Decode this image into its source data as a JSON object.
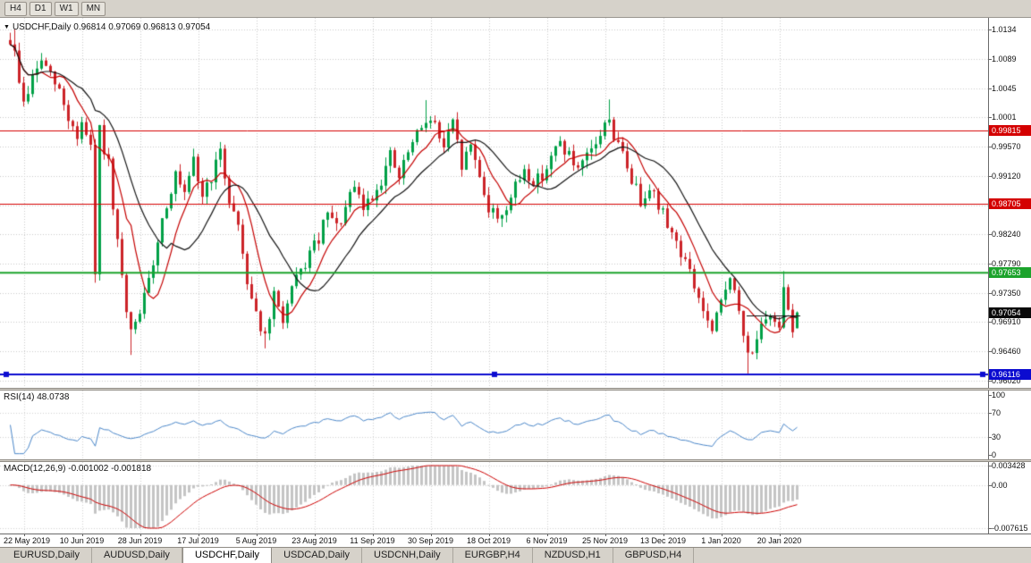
{
  "toolbar": {
    "timeframes": [
      "H4",
      "D1",
      "W1",
      "MN"
    ]
  },
  "chart": {
    "title": "USDCHF,Daily  0.96814 0.97069 0.96813 0.97054",
    "y_ticks": [
      {
        "v": 1.0134,
        "t": "1.0134"
      },
      {
        "v": 1.0089,
        "t": "1.0089"
      },
      {
        "v": 1.0045,
        "t": "1.0045"
      },
      {
        "v": 1.0001,
        "t": "1.0001"
      },
      {
        "v": 0.9957,
        "t": "0.99570"
      },
      {
        "v": 0.9912,
        "t": "0.99120"
      },
      {
        "v": 0.9867,
        "t": "0.98670"
      },
      {
        "v": 0.9824,
        "t": "0.98240"
      },
      {
        "v": 0.9779,
        "t": "0.97790"
      },
      {
        "v": 0.9735,
        "t": "0.97350"
      },
      {
        "v": 0.9691,
        "t": "0.96910"
      },
      {
        "v": 0.9646,
        "t": "0.96460"
      },
      {
        "v": 0.9602,
        "t": "0.96020"
      }
    ],
    "levels": [
      {
        "v": 0.99815,
        "t": "0.99815",
        "color": "#d40000",
        "width": 1,
        "handles": false
      },
      {
        "v": 0.98705,
        "t": "0.98705",
        "color": "#d40000",
        "width": 1,
        "handles": false
      },
      {
        "v": 0.97653,
        "t": "0.97653",
        "color": "#1ca32c",
        "width": 2,
        "handles": false
      },
      {
        "v": 0.96116,
        "t": "0.96116",
        "color": "#0b0bd0",
        "width": 2,
        "handles": true
      }
    ],
    "bid": {
      "v": 0.97054,
      "t": "0.97054",
      "color": "#0a0a0a"
    },
    "segment": {
      "v": 0.9701,
      "i1": 165,
      "i2": 177,
      "color": "#111111"
    }
  },
  "rsi": {
    "title": "RSI(14) 48.0738",
    "period": 14,
    "last": 48.0738,
    "levels": [
      {
        "v": 100,
        "t": "100"
      },
      {
        "v": 70,
        "t": "70"
      },
      {
        "v": 30,
        "t": "30"
      },
      {
        "v": 0,
        "t": "0"
      }
    ],
    "color": "#4a86c8"
  },
  "macd": {
    "title": "MACD(12,26,9) -0.001002 -0.001818",
    "fast": 12,
    "slow": 26,
    "signal": 9,
    "main_last": -0.001002,
    "signal_last": -0.001818,
    "axis": [
      {
        "v": 0.003428,
        "t": "0.003428"
      },
      {
        "v": 0,
        "t": "0.00"
      },
      {
        "v": -0.007615,
        "t": "-0.007615"
      }
    ],
    "hist_color": "#c4c4c4",
    "signal_color": "#cc0000"
  },
  "x_axis": {
    "labels": [
      "22 May 2019",
      "10 Jun 2019",
      "28 Jun 2019",
      "17 Jul 2019",
      "5 Aug 2019",
      "23 Aug 2019",
      "11 Sep 2019",
      "30 Sep 2019",
      "18 Oct 2019",
      "6 Nov 2019",
      "25 Nov 2019",
      "13 Dec 2019",
      "1 Jan 2020",
      "20 Jan 2020"
    ],
    "first_index": 3,
    "step": 13
  },
  "tabs": [
    {
      "label": "EURUSD,Daily",
      "active": false
    },
    {
      "label": "AUDUSD,Daily",
      "active": false
    },
    {
      "label": "USDCHF,Daily",
      "active": true
    },
    {
      "label": "USDCAD,Daily",
      "active": false
    },
    {
      "label": "USDCNH,Daily",
      "active": false
    },
    {
      "label": "EURGBP,H4",
      "active": false
    },
    {
      "label": "NZDUSD,H1",
      "active": false
    },
    {
      "label": "GBPUSD,H4",
      "active": false
    }
  ],
  "chart_data": {
    "type": "candlestick",
    "symbol": "USDCHF",
    "timeframe": "Daily",
    "visible_price_range": {
      "min": 0.9602,
      "max": 1.0134
    },
    "count": 177,
    "seed": 9,
    "noise": 0.0011,
    "wick": 0.0013,
    "close_waypoints": [
      [
        0,
        1.0118
      ],
      [
        1,
        1.0095
      ],
      [
        3,
        1.0022
      ],
      [
        5,
        1.006
      ],
      [
        7,
        1.0088
      ],
      [
        9,
        1.0062
      ],
      [
        11,
        1.004
      ],
      [
        13,
        1.0
      ],
      [
        15,
        0.9972
      ],
      [
        16,
        0.9992
      ],
      [
        18,
        0.995
      ],
      [
        19,
        0.9762
      ],
      [
        20,
        0.998
      ],
      [
        22,
        0.9928
      ],
      [
        23,
        0.9855
      ],
      [
        25,
        0.9758
      ],
      [
        26,
        0.97
      ],
      [
        27,
        0.9672
      ],
      [
        29,
        0.9708
      ],
      [
        31,
        0.9748
      ],
      [
        33,
        0.9818
      ],
      [
        35,
        0.9872
      ],
      [
        37,
        0.9912
      ],
      [
        39,
        0.9878
      ],
      [
        41,
        0.9932
      ],
      [
        43,
        0.9882
      ],
      [
        45,
        0.9912
      ],
      [
        47,
        0.9945
      ],
      [
        49,
        0.9878
      ],
      [
        51,
        0.9838
      ],
      [
        53,
        0.9755
      ],
      [
        55,
        0.9706
      ],
      [
        57,
        0.9664
      ],
      [
        59,
        0.9728
      ],
      [
        61,
        0.9696
      ],
      [
        63,
        0.9738
      ],
      [
        65,
        0.9766
      ],
      [
        67,
        0.9794
      ],
      [
        69,
        0.9816
      ],
      [
        71,
        0.9854
      ],
      [
        73,
        0.9832
      ],
      [
        75,
        0.9862
      ],
      [
        77,
        0.9892
      ],
      [
        79,
        0.9864
      ],
      [
        81,
        0.9882
      ],
      [
        83,
        0.9908
      ],
      [
        85,
        0.9942
      ],
      [
        87,
        0.9908
      ],
      [
        89,
        0.9948
      ],
      [
        91,
        0.9972
      ],
      [
        93,
        1.0002
      ],
      [
        95,
        0.9988
      ],
      [
        97,
        0.9954
      ],
      [
        99,
        0.999
      ],
      [
        101,
        0.9928
      ],
      [
        103,
        0.9958
      ],
      [
        105,
        0.9915
      ],
      [
        107,
        0.9862
      ],
      [
        109,
        0.985
      ],
      [
        111,
        0.9865
      ],
      [
        113,
        0.9893
      ],
      [
        115,
        0.9923
      ],
      [
        117,
        0.9901
      ],
      [
        119,
        0.9915
      ],
      [
        121,
        0.9938
      ],
      [
        123,
        0.9963
      ],
      [
        125,
        0.9943
      ],
      [
        127,
        0.9915
      ],
      [
        129,
        0.9938
      ],
      [
        131,
        0.9962
      ],
      [
        133,
        0.9988
      ],
      [
        134,
        1.0004
      ],
      [
        135,
        0.9971
      ],
      [
        137,
        0.9943
      ],
      [
        139,
        0.9908
      ],
      [
        141,
        0.9875
      ],
      [
        143,
        0.9901
      ],
      [
        145,
        0.9865
      ],
      [
        147,
        0.9843
      ],
      [
        149,
        0.9811
      ],
      [
        151,
        0.9783
      ],
      [
        153,
        0.9745
      ],
      [
        155,
        0.9708
      ],
      [
        157,
        0.9671
      ],
      [
        159,
        0.9721
      ],
      [
        161,
        0.9765
      ],
      [
        163,
        0.9701
      ],
      [
        165,
        0.964
      ],
      [
        167,
        0.9668
      ],
      [
        169,
        0.9688
      ],
      [
        171,
        0.9695
      ],
      [
        172,
        0.969
      ],
      [
        173,
        0.9752
      ],
      [
        174,
        0.9712
      ],
      [
        175,
        0.9682
      ],
      [
        176,
        0.9705
      ]
    ],
    "spikes": [
      {
        "i": 1,
        "high": 1.0134
      },
      {
        "i": 27,
        "low": 0.9641
      },
      {
        "i": 57,
        "low": 0.9651
      },
      {
        "i": 93,
        "high": 1.0027
      },
      {
        "i": 134,
        "high": 1.0028
      },
      {
        "i": 165,
        "low": 0.9613
      },
      {
        "i": 173,
        "high": 0.9768
      }
    ],
    "last_candle": {
      "o": 0.96814,
      "h": 0.97069,
      "l": 0.96813,
      "c": 0.97054
    },
    "ma": [
      {
        "period": 8,
        "color": "#c40000"
      },
      {
        "period": 17,
        "color": "#141414"
      }
    ],
    "colors": {
      "up": "#00a046",
      "down": "#cc2328",
      "grid": "#c9c9c9"
    }
  }
}
